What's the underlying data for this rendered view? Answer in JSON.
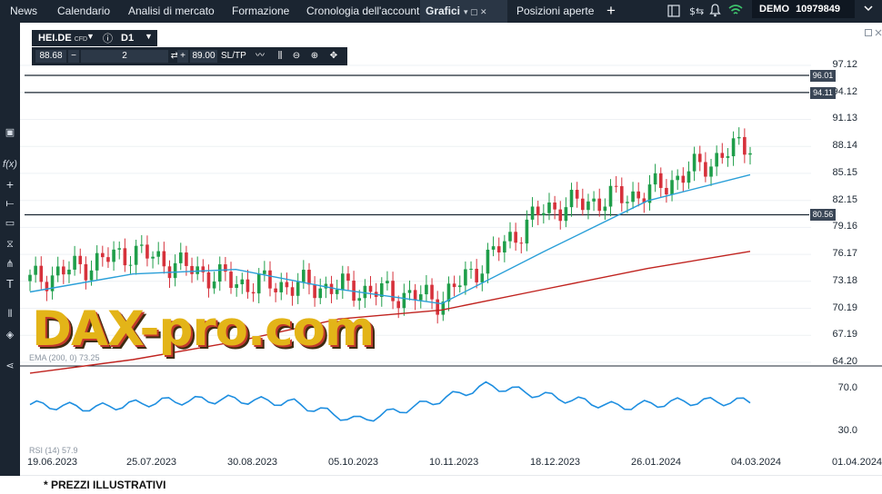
{
  "nav": {
    "tabs": [
      "News",
      "Calendario",
      "Analisi di mercato",
      "Formazione",
      "Cronologia dell'account",
      "Grafici",
      "Posizioni aperte"
    ],
    "active_tab": "Grafici"
  },
  "account": {
    "mode": "DEMO",
    "number": "10979849"
  },
  "instrument": {
    "symbol": "HEI.DE",
    "type": "CFD",
    "timeframe": "D1"
  },
  "trade": {
    "bid": "88.68",
    "volume": "2",
    "ask": "89.00",
    "sltp": "SL/TP"
  },
  "price_axis": [
    "97.12",
    "94.12",
    "91.13",
    "88.14",
    "85.15",
    "82.15",
    "79.16",
    "76.17",
    "73.18",
    "70.19",
    "67.19",
    "64.20"
  ],
  "indicator_axis": [
    "70.0",
    "30.0"
  ],
  "date_axis": [
    "19.06.2023",
    "25.07.2023",
    "30.08.2023",
    "05.10.2023",
    "10.11.2023",
    "18.12.2023",
    "26.01.2024",
    "04.03.2024",
    "01.04.2024"
  ],
  "levels": [
    "96.01",
    "94.11",
    "80.56"
  ],
  "indicators": {
    "ema_label": "EMA (200, 0) 73.25",
    "rsi_label": "RSI (14) 57.9"
  },
  "watermark": "DAX-pro.com",
  "footnote": "* PREZZI ILLUSTRATIVI",
  "colors": {
    "up": "#1f9e4a",
    "down": "#d6313b",
    "ema_fast": "#2a9fd8",
    "ema_slow": "#c0231f",
    "rsi": "#1d8ee0",
    "topbar": "#1b2531"
  },
  "chart_data": {
    "type": "line",
    "x": [
      "19.06.2023",
      "25.07.2023",
      "30.08.2023",
      "05.10.2023",
      "10.11.2023",
      "18.12.2023",
      "26.01.2024",
      "04.03.2024"
    ],
    "series": [
      {
        "values": [
          73.2,
          76.5,
          73.0,
          72.5,
          71.2,
          81.2,
          83.0,
          88.7
        ]
      },
      {
        "values": [
          72.0,
          74.0,
          74.5,
          72.3,
          70.7,
          76.5,
          82.1,
          85.0
        ]
      },
      {
        "values": [
          63.0,
          64.5,
          66.5,
          69.0,
          70.0,
          72.3,
          74.6,
          76.5
        ]
      }
    ],
    "ylim": [
      64.2,
      97.12
    ],
    "rsi": {
      "ylim": [
        30,
        70
      ],
      "values": [
        55,
        52,
        58,
        60,
        57,
        40,
        55,
        73,
        62,
        53,
        58,
        57.9
      ]
    },
    "levels": [
      96.01,
      94.11,
      80.56
    ]
  }
}
